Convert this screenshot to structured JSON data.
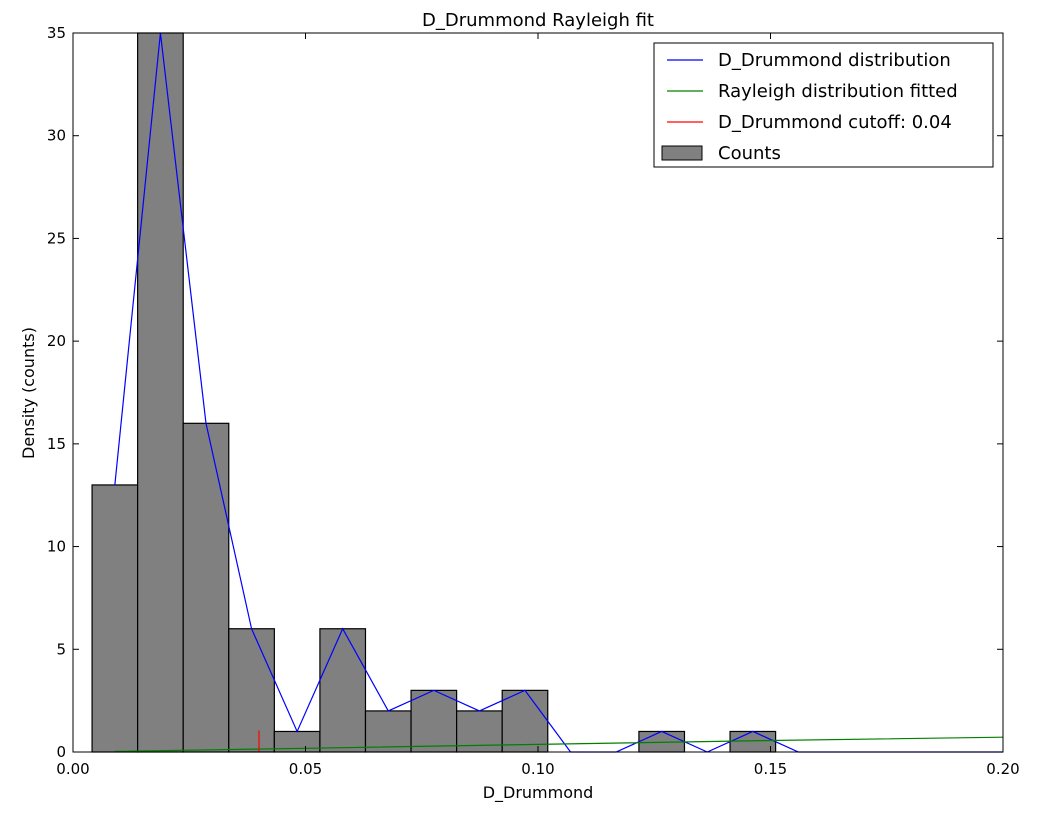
{
  "chart_data": {
    "type": "bar",
    "title": "D_Drummond Rayleigh fit",
    "xlabel": "D_Drummond",
    "ylabel": "Density (counts)",
    "xlim": [
      0.0,
      0.2
    ],
    "ylim": [
      0,
      35
    ],
    "xticks": [
      "0.00",
      "0.05",
      "0.10",
      "0.15",
      "0.20"
    ],
    "xtick_values": [
      0,
      0.05,
      0.1,
      0.15,
      0.2
    ],
    "yticks": [
      0,
      5,
      10,
      15,
      20,
      25,
      30,
      35
    ],
    "grid": false,
    "legend_position": "top-right",
    "bins": {
      "start": 0.0041,
      "width": 0.0098,
      "counts": [
        13,
        35,
        16,
        6,
        1,
        6,
        2,
        3,
        2,
        3,
        0,
        0,
        1,
        0,
        1,
        0,
        0,
        0,
        0,
        0
      ]
    },
    "series": [
      {
        "name": "D_Drummond distribution",
        "type": "line",
        "color": "#0000ff",
        "x": [
          0.009,
          0.0188,
          0.0286,
          0.0384,
          0.0482,
          0.058,
          0.0678,
          0.0776,
          0.0874,
          0.0972,
          0.107,
          0.1168,
          0.1266,
          0.1364,
          0.1462,
          0.156,
          0.2
        ],
        "y": [
          13,
          35,
          16,
          6,
          1,
          6,
          2,
          3,
          2,
          3,
          0,
          0,
          1,
          0,
          1,
          0,
          0
        ]
      },
      {
        "name": "Rayleigh distribution fitted",
        "type": "line",
        "color": "#008000",
        "x": [
          0.009,
          0.05,
          0.1,
          0.15,
          0.2
        ],
        "y": [
          0.03,
          0.18,
          0.37,
          0.56,
          0.72
        ]
      },
      {
        "name": "D_Drummond cutoff: 0.04",
        "type": "vline",
        "color": "#ff0000",
        "x": 0.04,
        "y": [
          0,
          1.05
        ]
      },
      {
        "name": "Counts",
        "type": "bar",
        "color": "#808080"
      }
    ]
  }
}
